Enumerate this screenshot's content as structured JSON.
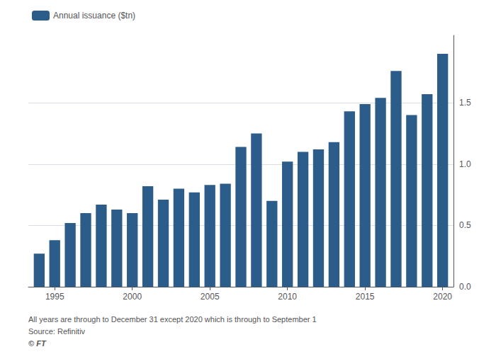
{
  "chart_data": {
    "type": "bar",
    "x": [
      1994,
      1995,
      1996,
      1997,
      1998,
      1999,
      2000,
      2001,
      2002,
      2003,
      2004,
      2005,
      2006,
      2007,
      2008,
      2009,
      2010,
      2011,
      2012,
      2013,
      2014,
      2015,
      2016,
      2017,
      2018,
      2019,
      2020
    ],
    "series": [
      {
        "name": "Annual issuance ($tn)",
        "color": "#2b5c8a",
        "values": [
          0.27,
          0.38,
          0.52,
          0.6,
          0.67,
          0.63,
          0.6,
          0.82,
          0.71,
          0.8,
          0.77,
          0.83,
          0.84,
          1.14,
          1.25,
          0.7,
          1.02,
          1.1,
          1.12,
          1.18,
          1.43,
          1.49,
          1.54,
          1.76,
          1.4,
          1.57,
          1.9
        ]
      }
    ],
    "xlim": [
      1993.3,
      2020.7
    ],
    "xticks": [
      1995,
      2000,
      2005,
      2010,
      2015,
      2020
    ],
    "ylim": [
      0,
      2.05
    ],
    "yticks": [
      {
        "value": 0,
        "label": "0.0"
      },
      0.5,
      {
        "value": 1,
        "label": "1.0"
      },
      1.5
    ],
    "grid": true,
    "legend": "upper left",
    "annotations": [
      "All years are through to December 31 except 2020 which is through to September 1",
      "Source: Refinitiv",
      "© FT"
    ]
  }
}
